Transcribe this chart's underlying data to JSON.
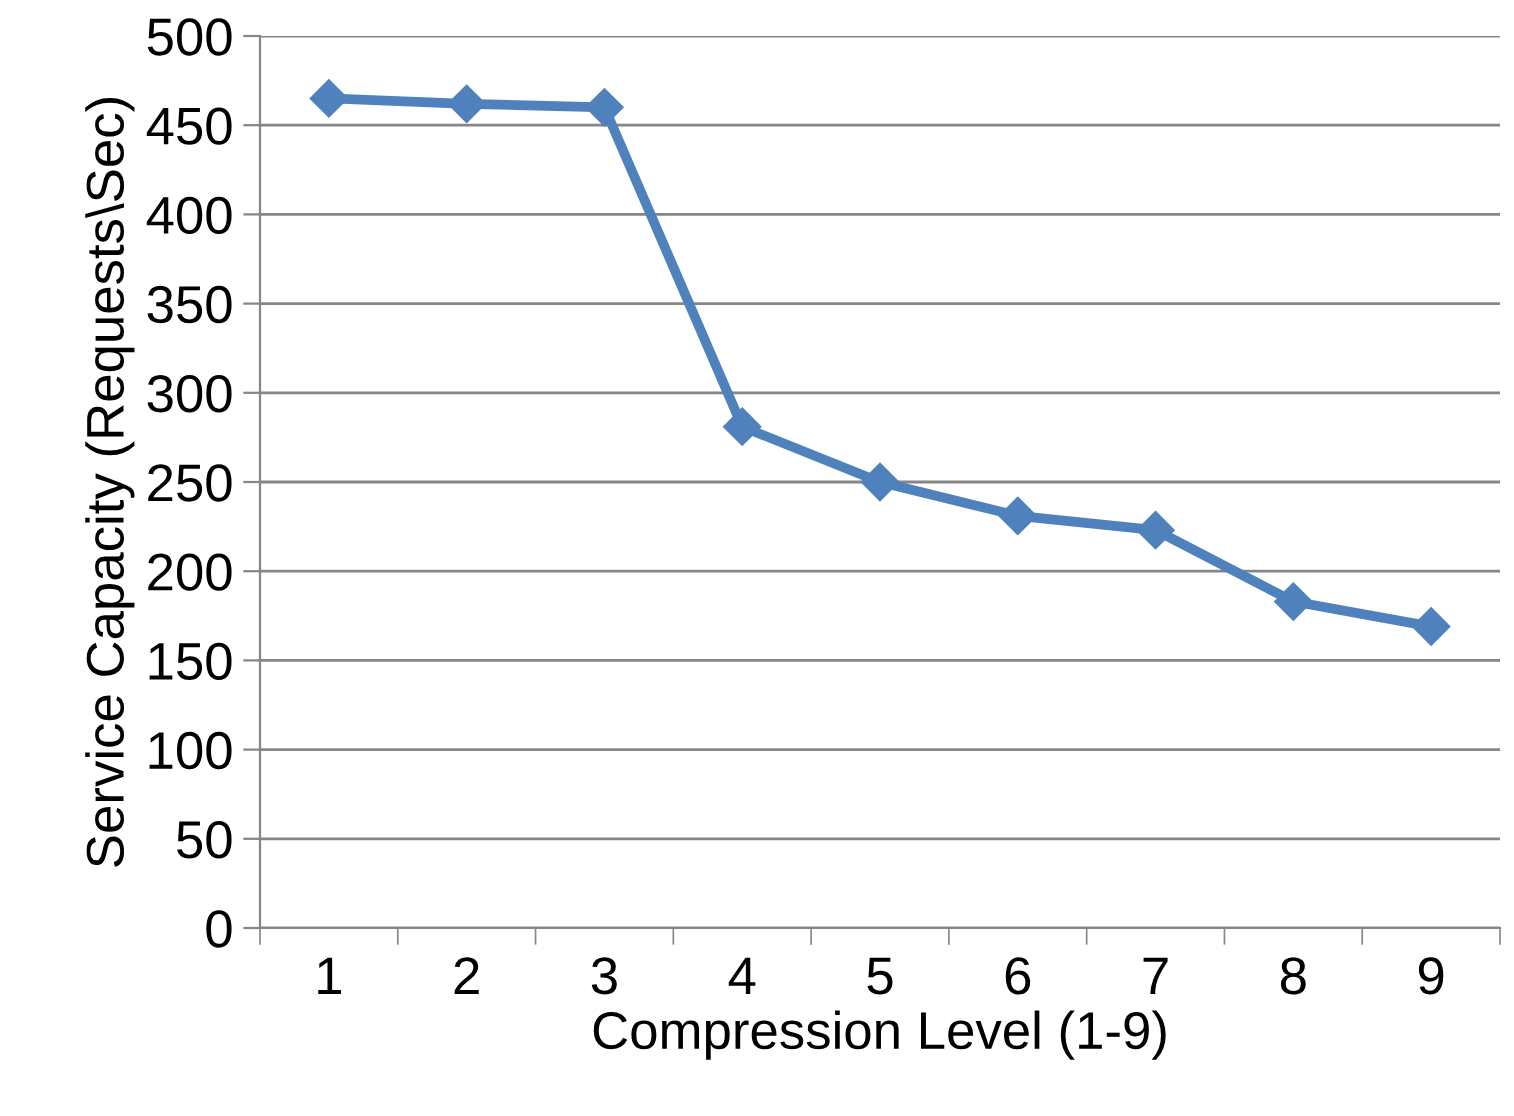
{
  "chart_data": {
    "type": "line",
    "xlabel": "Compression Level (1-9)",
    "ylabel": "Service Capacity (Requests\\Sec)",
    "categories": [
      "1",
      "2",
      "3",
      "4",
      "5",
      "6",
      "7",
      "8",
      "9"
    ],
    "series": [
      {
        "color": "#4f81bd",
        "values": [
          465,
          462,
          460,
          281,
          250,
          231,
          223,
          183,
          169
        ]
      }
    ],
    "ylim": [
      0,
      500
    ],
    "yticks": [
      0,
      50,
      100,
      150,
      200,
      250,
      300,
      350,
      400,
      450,
      500
    ],
    "grid": "y",
    "marker": "diamond",
    "line_style": "solid",
    "legend": false
  }
}
